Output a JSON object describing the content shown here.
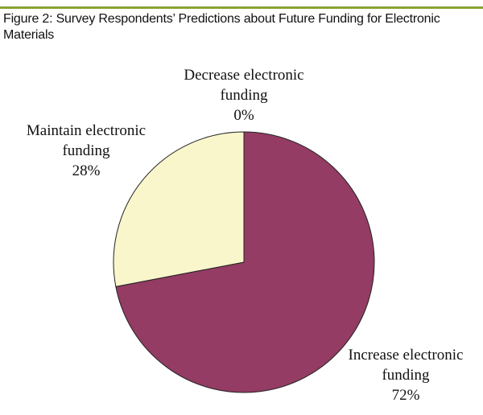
{
  "figure_title": "Figure 2: Survey Respondents’ Predictions about Future Funding for Electronic Materials",
  "colors": {
    "rule": "#8aa335",
    "increase": "#943c63",
    "maintain": "#f9f6cc",
    "decrease": "#943c63",
    "stroke": "#222222"
  },
  "chart_data": {
    "type": "pie",
    "title": "Figure 2: Survey Respondents’ Predictions about Future Funding for Electronic Materials",
    "slices": [
      {
        "label_lines": [
          "Decrease electronic",
          "funding",
          "0%"
        ],
        "value": 0,
        "color": "#943c63"
      },
      {
        "label_lines": [
          "Increase electronic",
          "funding",
          "72%"
        ],
        "value": 72,
        "color": "#943c63"
      },
      {
        "label_lines": [
          "Maintain electronic",
          "funding",
          "28%"
        ],
        "value": 28,
        "color": "#f9f6cc"
      }
    ]
  }
}
